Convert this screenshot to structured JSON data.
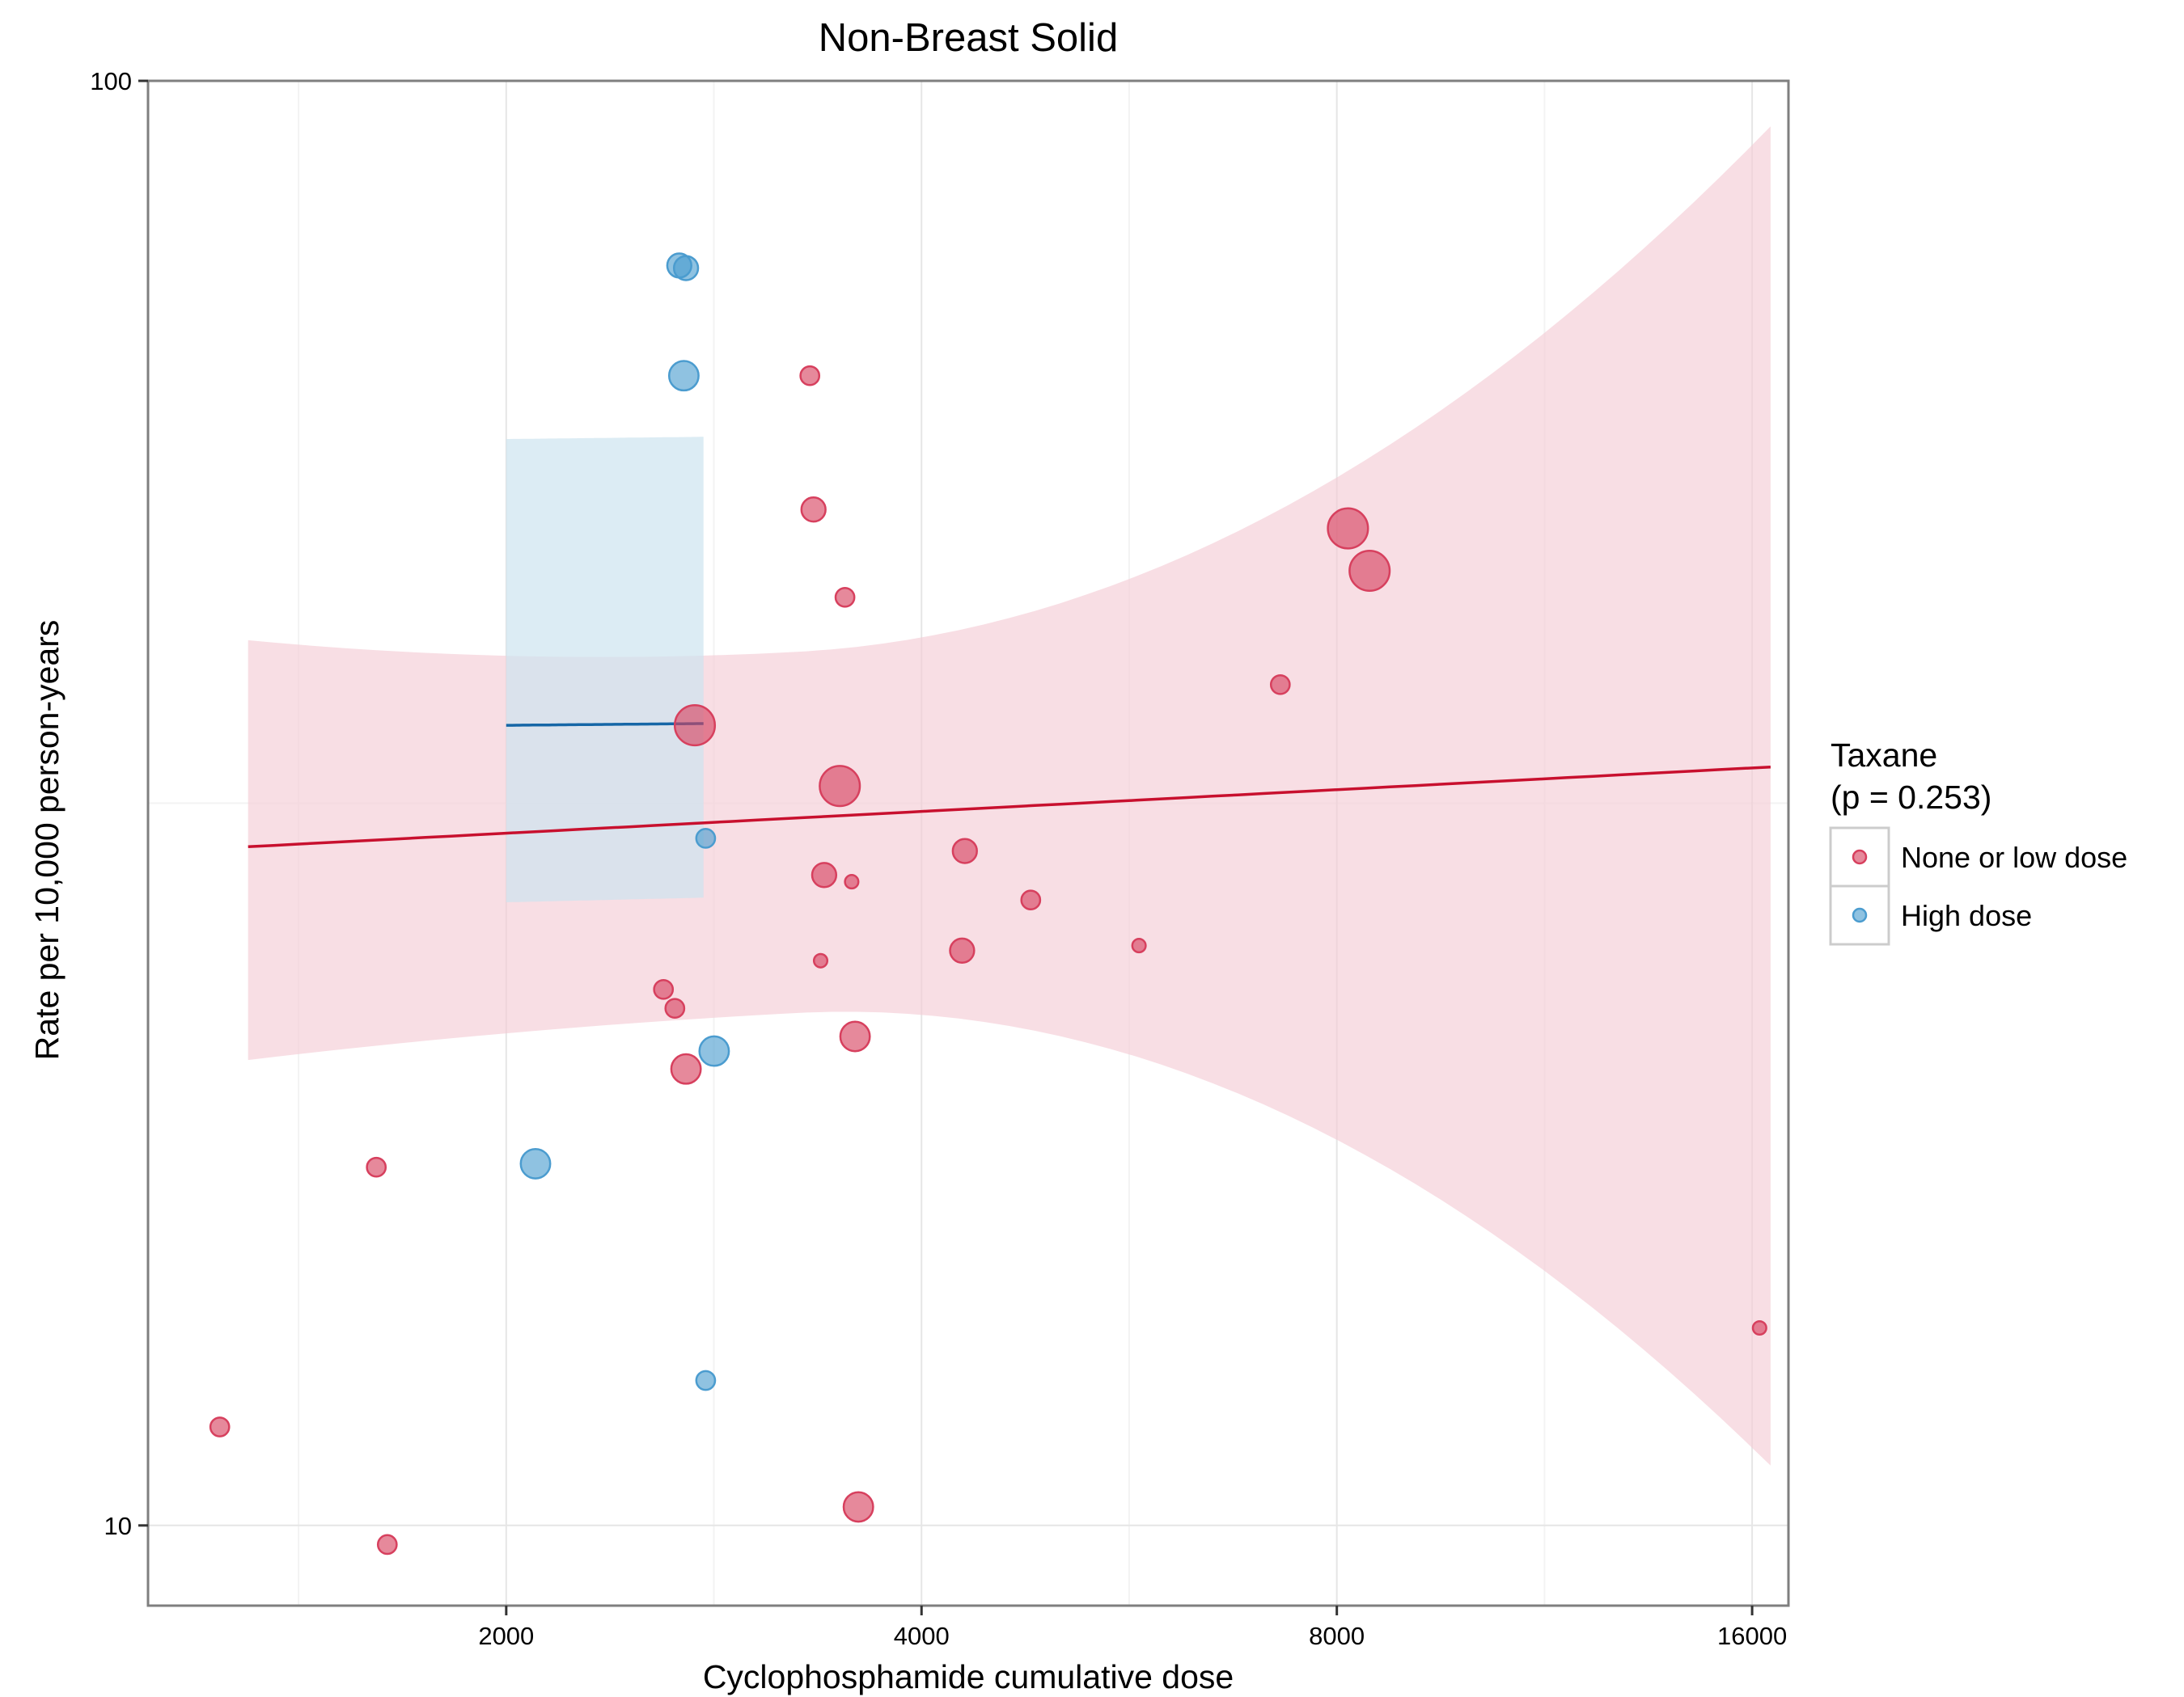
{
  "chart_data": {
    "type": "scatter",
    "title": "Non-Breast Solid",
    "xlabel": "Cyclophosphamide cumulative dose",
    "ylabel": "Rate per 10,000 person-years",
    "x_scale": "log2",
    "y_scale": "log10",
    "xlim": [
      1100,
      17000
    ],
    "ylim": [
      8.8,
      100
    ],
    "x_ticks": [
      2000,
      4000,
      8000,
      16000
    ],
    "x_tick_labels": [
      "2000",
      "4000",
      "8000",
      "16000"
    ],
    "y_ticks": [
      10,
      100
    ],
    "y_tick_labels": [
      "10",
      "100"
    ],
    "grid": true,
    "legend": {
      "title_line1": "Taxane",
      "title_line2": "(p = 0.253)",
      "position": "right",
      "entries": [
        "None or low dose",
        "High dose"
      ]
    },
    "colors": {
      "none_or_low": "#d7405e",
      "high": "#4b9ccf",
      "none_or_low_fit": "#c8102e",
      "high_fit": "#1566a6",
      "none_or_low_band": "#f4cad3",
      "high_band": "#cde4f0"
    },
    "series": [
      {
        "name": "None or low dose",
        "points": [
          {
            "x": 1240,
            "y": 11.7,
            "size": 2
          },
          {
            "x": 1610,
            "y": 17.7,
            "size": 2
          },
          {
            "x": 1640,
            "y": 9.7,
            "size": 2
          },
          {
            "x": 2600,
            "y": 23.5,
            "size": 2
          },
          {
            "x": 2650,
            "y": 22.8,
            "size": 2
          },
          {
            "x": 2700,
            "y": 20.7,
            "size": 4
          },
          {
            "x": 2740,
            "y": 35.8,
            "size": 6
          },
          {
            "x": 3320,
            "y": 62.5,
            "size": 2
          },
          {
            "x": 3340,
            "y": 50.5,
            "size": 3
          },
          {
            "x": 3380,
            "y": 24.6,
            "size": 1
          },
          {
            "x": 3400,
            "y": 28.2,
            "size": 3
          },
          {
            "x": 3490,
            "y": 32.5,
            "size": 6
          },
          {
            "x": 3520,
            "y": 43.9,
            "size": 2
          },
          {
            "x": 3560,
            "y": 27.9,
            "size": 1
          },
          {
            "x": 3580,
            "y": 21.8,
            "size": 4
          },
          {
            "x": 3600,
            "y": 10.3,
            "size": 4
          },
          {
            "x": 4280,
            "y": 25.0,
            "size": 3
          },
          {
            "x": 4300,
            "y": 29.3,
            "size": 3
          },
          {
            "x": 4800,
            "y": 27.1,
            "size": 2
          },
          {
            "x": 5750,
            "y": 25.2,
            "size": 1
          },
          {
            "x": 7280,
            "y": 38.2,
            "size": 2
          },
          {
            "x": 8150,
            "y": 49.0,
            "size": 6
          },
          {
            "x": 8450,
            "y": 45.8,
            "size": 6
          },
          {
            "x": 16200,
            "y": 13.7,
            "size": 1
          }
        ]
      },
      {
        "name": "High dose",
        "points": [
          {
            "x": 2100,
            "y": 17.8,
            "size": 4
          },
          {
            "x": 2670,
            "y": 74.5,
            "size": 3
          },
          {
            "x": 2700,
            "y": 74.2,
            "size": 3
          },
          {
            "x": 2690,
            "y": 62.5,
            "size": 4
          },
          {
            "x": 2790,
            "y": 29.9,
            "size": 2
          },
          {
            "x": 2790,
            "y": 12.6,
            "size": 2
          },
          {
            "x": 2830,
            "y": 21.3,
            "size": 4
          }
        ]
      }
    ],
    "fits": [
      {
        "name": "None or low dose",
        "x_start": 1300,
        "x_end": 16500,
        "y_start": 29.5,
        "y_end": 33.5,
        "band_left": [
          21.0,
          41.0
        ],
        "band_right": [
          11.0,
          93.0
        ]
      },
      {
        "name": "High dose",
        "x_start": 2000,
        "x_end": 2780,
        "y_start": 35.8,
        "y_end": 35.9,
        "band_left": [
          27.0,
          56.5
        ],
        "band_right": [
          27.2,
          56.7
        ]
      }
    ]
  }
}
